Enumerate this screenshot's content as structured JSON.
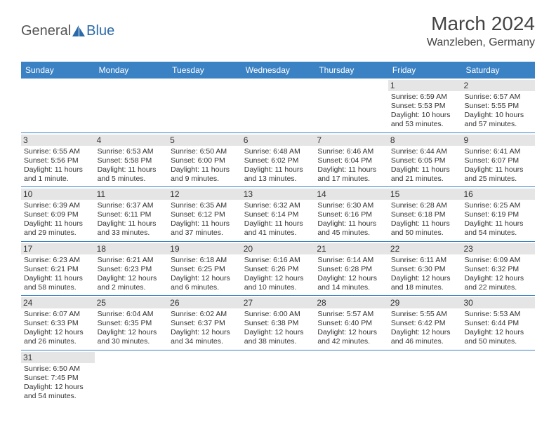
{
  "logo": {
    "text1": "General",
    "text2": "Blue",
    "text1_color": "#555555",
    "text2_color": "#2b6aa8"
  },
  "title": {
    "month": "March 2024",
    "location": "Wanzleben, Germany"
  },
  "colors": {
    "header_bg": "#3b82c4",
    "header_text": "#ffffff",
    "daybar_bg": "#e5e5e5",
    "border": "#3b82c4",
    "body_text": "#333333",
    "page_bg": "#ffffff"
  },
  "typography": {
    "month_fontsize": 28,
    "location_fontsize": 16,
    "dayhead_fontsize": 12,
    "cell_fontsize": 10.5
  },
  "weekdays": [
    "Sunday",
    "Monday",
    "Tuesday",
    "Wednesday",
    "Thursday",
    "Friday",
    "Saturday"
  ],
  "weeks": [
    [
      {
        "empty": true
      },
      {
        "empty": true
      },
      {
        "empty": true
      },
      {
        "empty": true
      },
      {
        "empty": true
      },
      {
        "num": "1",
        "sunrise": "Sunrise: 6:59 AM",
        "sunset": "Sunset: 5:53 PM",
        "daylight": "Daylight: 10 hours and 53 minutes."
      },
      {
        "num": "2",
        "sunrise": "Sunrise: 6:57 AM",
        "sunset": "Sunset: 5:55 PM",
        "daylight": "Daylight: 10 hours and 57 minutes."
      }
    ],
    [
      {
        "num": "3",
        "sunrise": "Sunrise: 6:55 AM",
        "sunset": "Sunset: 5:56 PM",
        "daylight": "Daylight: 11 hours and 1 minute."
      },
      {
        "num": "4",
        "sunrise": "Sunrise: 6:53 AM",
        "sunset": "Sunset: 5:58 PM",
        "daylight": "Daylight: 11 hours and 5 minutes."
      },
      {
        "num": "5",
        "sunrise": "Sunrise: 6:50 AM",
        "sunset": "Sunset: 6:00 PM",
        "daylight": "Daylight: 11 hours and 9 minutes."
      },
      {
        "num": "6",
        "sunrise": "Sunrise: 6:48 AM",
        "sunset": "Sunset: 6:02 PM",
        "daylight": "Daylight: 11 hours and 13 minutes."
      },
      {
        "num": "7",
        "sunrise": "Sunrise: 6:46 AM",
        "sunset": "Sunset: 6:04 PM",
        "daylight": "Daylight: 11 hours and 17 minutes."
      },
      {
        "num": "8",
        "sunrise": "Sunrise: 6:44 AM",
        "sunset": "Sunset: 6:05 PM",
        "daylight": "Daylight: 11 hours and 21 minutes."
      },
      {
        "num": "9",
        "sunrise": "Sunrise: 6:41 AM",
        "sunset": "Sunset: 6:07 PM",
        "daylight": "Daylight: 11 hours and 25 minutes."
      }
    ],
    [
      {
        "num": "10",
        "sunrise": "Sunrise: 6:39 AM",
        "sunset": "Sunset: 6:09 PM",
        "daylight": "Daylight: 11 hours and 29 minutes."
      },
      {
        "num": "11",
        "sunrise": "Sunrise: 6:37 AM",
        "sunset": "Sunset: 6:11 PM",
        "daylight": "Daylight: 11 hours and 33 minutes."
      },
      {
        "num": "12",
        "sunrise": "Sunrise: 6:35 AM",
        "sunset": "Sunset: 6:12 PM",
        "daylight": "Daylight: 11 hours and 37 minutes."
      },
      {
        "num": "13",
        "sunrise": "Sunrise: 6:32 AM",
        "sunset": "Sunset: 6:14 PM",
        "daylight": "Daylight: 11 hours and 41 minutes."
      },
      {
        "num": "14",
        "sunrise": "Sunrise: 6:30 AM",
        "sunset": "Sunset: 6:16 PM",
        "daylight": "Daylight: 11 hours and 45 minutes."
      },
      {
        "num": "15",
        "sunrise": "Sunrise: 6:28 AM",
        "sunset": "Sunset: 6:18 PM",
        "daylight": "Daylight: 11 hours and 50 minutes."
      },
      {
        "num": "16",
        "sunrise": "Sunrise: 6:25 AM",
        "sunset": "Sunset: 6:19 PM",
        "daylight": "Daylight: 11 hours and 54 minutes."
      }
    ],
    [
      {
        "num": "17",
        "sunrise": "Sunrise: 6:23 AM",
        "sunset": "Sunset: 6:21 PM",
        "daylight": "Daylight: 11 hours and 58 minutes."
      },
      {
        "num": "18",
        "sunrise": "Sunrise: 6:21 AM",
        "sunset": "Sunset: 6:23 PM",
        "daylight": "Daylight: 12 hours and 2 minutes."
      },
      {
        "num": "19",
        "sunrise": "Sunrise: 6:18 AM",
        "sunset": "Sunset: 6:25 PM",
        "daylight": "Daylight: 12 hours and 6 minutes."
      },
      {
        "num": "20",
        "sunrise": "Sunrise: 6:16 AM",
        "sunset": "Sunset: 6:26 PM",
        "daylight": "Daylight: 12 hours and 10 minutes."
      },
      {
        "num": "21",
        "sunrise": "Sunrise: 6:14 AM",
        "sunset": "Sunset: 6:28 PM",
        "daylight": "Daylight: 12 hours and 14 minutes."
      },
      {
        "num": "22",
        "sunrise": "Sunrise: 6:11 AM",
        "sunset": "Sunset: 6:30 PM",
        "daylight": "Daylight: 12 hours and 18 minutes."
      },
      {
        "num": "23",
        "sunrise": "Sunrise: 6:09 AM",
        "sunset": "Sunset: 6:32 PM",
        "daylight": "Daylight: 12 hours and 22 minutes."
      }
    ],
    [
      {
        "num": "24",
        "sunrise": "Sunrise: 6:07 AM",
        "sunset": "Sunset: 6:33 PM",
        "daylight": "Daylight: 12 hours and 26 minutes."
      },
      {
        "num": "25",
        "sunrise": "Sunrise: 6:04 AM",
        "sunset": "Sunset: 6:35 PM",
        "daylight": "Daylight: 12 hours and 30 minutes."
      },
      {
        "num": "26",
        "sunrise": "Sunrise: 6:02 AM",
        "sunset": "Sunset: 6:37 PM",
        "daylight": "Daylight: 12 hours and 34 minutes."
      },
      {
        "num": "27",
        "sunrise": "Sunrise: 6:00 AM",
        "sunset": "Sunset: 6:38 PM",
        "daylight": "Daylight: 12 hours and 38 minutes."
      },
      {
        "num": "28",
        "sunrise": "Sunrise: 5:57 AM",
        "sunset": "Sunset: 6:40 PM",
        "daylight": "Daylight: 12 hours and 42 minutes."
      },
      {
        "num": "29",
        "sunrise": "Sunrise: 5:55 AM",
        "sunset": "Sunset: 6:42 PM",
        "daylight": "Daylight: 12 hours and 46 minutes."
      },
      {
        "num": "30",
        "sunrise": "Sunrise: 5:53 AM",
        "sunset": "Sunset: 6:44 PM",
        "daylight": "Daylight: 12 hours and 50 minutes."
      }
    ],
    [
      {
        "num": "31",
        "sunrise": "Sunrise: 6:50 AM",
        "sunset": "Sunset: 7:45 PM",
        "daylight": "Daylight: 12 hours and 54 minutes."
      },
      {
        "empty": true
      },
      {
        "empty": true
      },
      {
        "empty": true
      },
      {
        "empty": true
      },
      {
        "empty": true
      },
      {
        "empty": true
      }
    ]
  ]
}
